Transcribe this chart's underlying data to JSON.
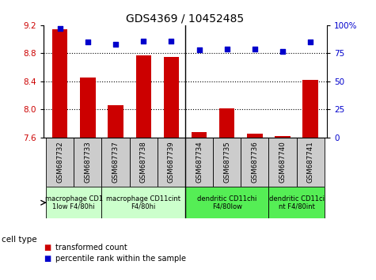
{
  "title": "GDS4369 / 10452485",
  "samples": [
    "GSM687732",
    "GSM687733",
    "GSM687737",
    "GSM687738",
    "GSM687739",
    "GSM687734",
    "GSM687735",
    "GSM687736",
    "GSM687740",
    "GSM687741"
  ],
  "transformed_count": [
    9.14,
    8.46,
    8.06,
    8.77,
    8.75,
    7.68,
    8.02,
    7.66,
    7.62,
    8.42
  ],
  "percentile_rank": [
    97,
    85,
    83,
    86,
    86,
    78,
    79,
    79,
    77,
    85
  ],
  "ylim_left": [
    7.6,
    9.2
  ],
  "ylim_right": [
    0,
    100
  ],
  "yticks_left": [
    7.6,
    8.0,
    8.4,
    8.8,
    9.2
  ],
  "yticks_right": [
    0,
    25,
    50,
    75,
    100
  ],
  "bar_color": "#cc0000",
  "dot_color": "#0000cc",
  "cell_types": [
    {
      "label": "macrophage CD1\n1low F4/80hi",
      "start": 0,
      "end": 2,
      "color": "#ccffcc"
    },
    {
      "label": "macrophage CD11cint\nF4/80hi",
      "start": 2,
      "end": 5,
      "color": "#ccffcc"
    },
    {
      "label": "dendritic CD11chi\nF4/80low",
      "start": 5,
      "end": 8,
      "color": "#55ee55"
    },
    {
      "label": "dendritic CD11ci\nnt F4/80int",
      "start": 8,
      "end": 10,
      "color": "#55ee55"
    }
  ],
  "sample_box_color": "#cccccc",
  "legend_bar_label": "transformed count",
  "legend_dot_label": "percentile rank within the sample",
  "cell_type_label": "cell type",
  "background_color": "#ffffff",
  "plot_bg_color": "#ffffff",
  "grid_color": "#000000",
  "separator_positions": [
    5
  ],
  "right_axis_color": "#0000cc"
}
